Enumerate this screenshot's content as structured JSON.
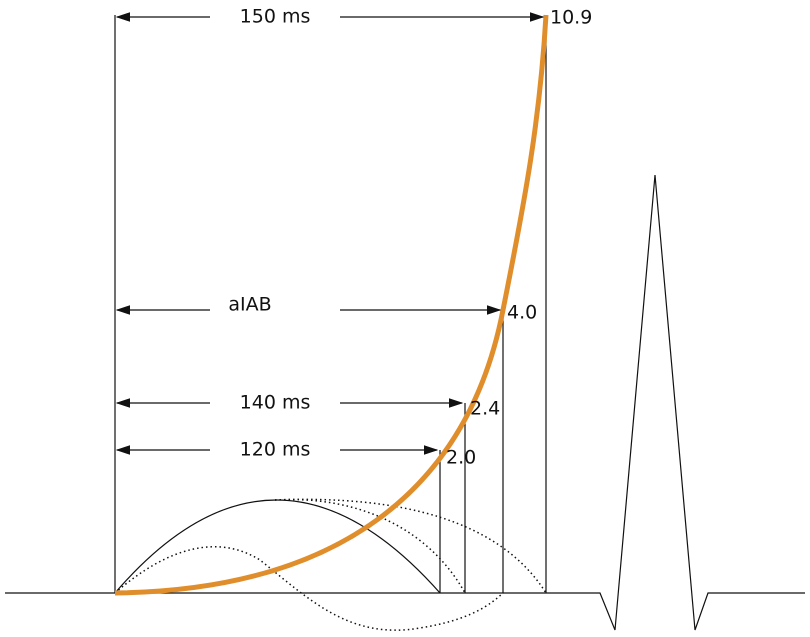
{
  "intervals": [
    {
      "label": "150 ms",
      "value": "10.9"
    },
    {
      "label": "aIAB",
      "value": "4.0"
    },
    {
      "label": "140 ms",
      "value": "2.4"
    },
    {
      "label": "120 ms",
      "value": "2.0"
    }
  ]
}
